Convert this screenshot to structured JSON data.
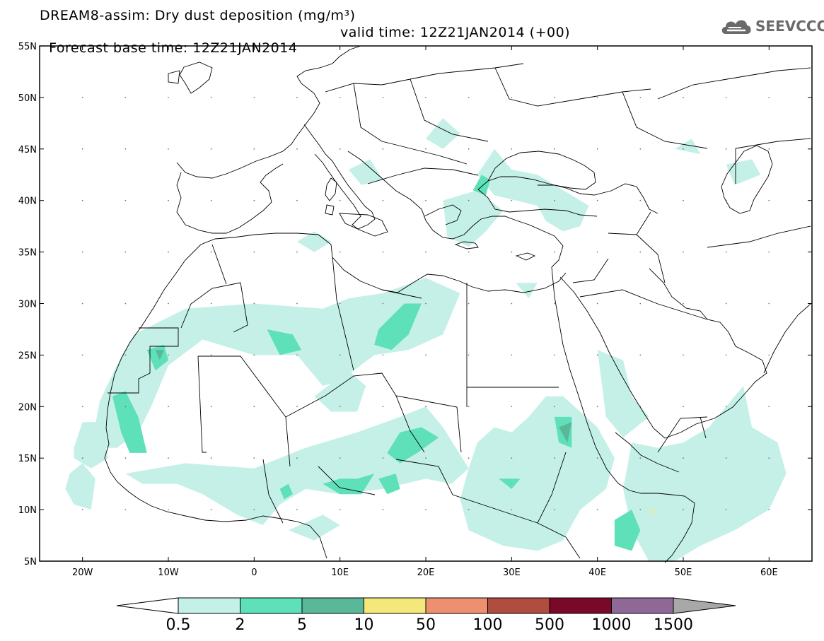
{
  "title": {
    "line1": "DREAM8-assim: Dry dust deposition (mg/m³)",
    "line2_base": "Forecast base time: 12Z21JAN2014",
    "line2_valid": "valid time: 12Z21JAN2014 (+00)"
  },
  "logo": {
    "text": "SEEVCCC",
    "icon": "cloud-icon",
    "color": "#6a6a6a"
  },
  "map": {
    "lon_range": [
      -25,
      65
    ],
    "lat_range": [
      5,
      55
    ],
    "lon_ticks": [
      {
        "value": -20,
        "label": "20W"
      },
      {
        "value": -10,
        "label": "10W"
      },
      {
        "value": 0,
        "label": "0"
      },
      {
        "value": 10,
        "label": "10E"
      },
      {
        "value": 20,
        "label": "20E"
      },
      {
        "value": 30,
        "label": "30E"
      },
      {
        "value": 40,
        "label": "40E"
      },
      {
        "value": 50,
        "label": "50E"
      },
      {
        "value": 60,
        "label": "60E"
      }
    ],
    "lat_ticks": [
      {
        "value": 55,
        "label": "55N"
      },
      {
        "value": 50,
        "label": "50N"
      },
      {
        "value": 45,
        "label": "45N"
      },
      {
        "value": 40,
        "label": "40N"
      },
      {
        "value": 35,
        "label": "35N"
      },
      {
        "value": 30,
        "label": "30N"
      },
      {
        "value": 25,
        "label": "25N"
      },
      {
        "value": 20,
        "label": "20N"
      },
      {
        "value": 15,
        "label": "15N"
      },
      {
        "value": 10,
        "label": "10N"
      },
      {
        "value": 5,
        "label": "5N"
      }
    ]
  },
  "legend": {
    "bins": [
      {
        "color": "#c4f0e8"
      },
      {
        "color": "#5ee0b8"
      },
      {
        "color": "#5ab898"
      },
      {
        "color": "#f5e87a"
      },
      {
        "color": "#ee9070"
      },
      {
        "color": "#b04c40"
      },
      {
        "color": "#7a0828"
      },
      {
        "color": "#906898"
      }
    ],
    "under_color": "#ffffff",
    "over_color": "#a8a8a8",
    "labels": [
      "0.5",
      "2",
      "5",
      "10",
      "50",
      "100",
      "500",
      "1000",
      "1500"
    ]
  },
  "field": {
    "light": [
      [
        [
          -19,
          16
        ],
        [
          -18,
          20.5
        ],
        [
          -16,
          24
        ],
        [
          -14,
          27
        ],
        [
          -8,
          29.5
        ],
        [
          0,
          30
        ],
        [
          8,
          29.5
        ],
        [
          11,
          30.5
        ],
        [
          15,
          31
        ],
        [
          20,
          32.5
        ],
        [
          24,
          31
        ],
        [
          22,
          27
        ],
        [
          18,
          25.5
        ],
        [
          14,
          25
        ],
        [
          10,
          22.5
        ],
        [
          8,
          22
        ],
        [
          5,
          25
        ],
        [
          0,
          25
        ],
        [
          -6,
          26.5
        ],
        [
          -10,
          24
        ],
        [
          -12,
          20
        ],
        [
          -13.5,
          17.5
        ],
        [
          -16,
          16
        ]
      ],
      [
        [
          -21,
          16
        ],
        [
          -20,
          18.5
        ],
        [
          -18,
          18.5
        ],
        [
          -17,
          15
        ],
        [
          -19,
          14
        ],
        [
          -21,
          15
        ]
      ],
      [
        [
          -21.5,
          13.5
        ],
        [
          -20,
          14.5
        ],
        [
          -18.5,
          13
        ],
        [
          -19,
          10
        ],
        [
          -21,
          10.5
        ],
        [
          -22,
          12
        ]
      ],
      [
        [
          -15,
          13.5
        ],
        [
          -8,
          14.5
        ],
        [
          0,
          14
        ],
        [
          3,
          15
        ],
        [
          6,
          16
        ],
        [
          12,
          17.5
        ],
        [
          17,
          19
        ],
        [
          20,
          20
        ],
        [
          22,
          18
        ],
        [
          25,
          14
        ],
        [
          23,
          12.5
        ],
        [
          20,
          13
        ],
        [
          15,
          12
        ],
        [
          10,
          11.5
        ],
        [
          6,
          12
        ],
        [
          3,
          10.5
        ],
        [
          1,
          8.5
        ],
        [
          -2,
          9.5
        ],
        [
          -6,
          11.5
        ],
        [
          -9,
          12.5
        ],
        [
          -13,
          12.5
        ]
      ],
      [
        [
          7,
          21
        ],
        [
          11,
          23.5
        ],
        [
          13,
          22
        ],
        [
          12,
          19.5
        ],
        [
          9,
          19.5
        ]
      ],
      [
        [
          4,
          8
        ],
        [
          8,
          9.5
        ],
        [
          10,
          8.5
        ],
        [
          7,
          7
        ]
      ],
      [
        [
          26,
          16.5
        ],
        [
          28,
          18
        ],
        [
          30,
          17.5
        ],
        [
          32,
          19
        ],
        [
          34,
          21
        ],
        [
          36,
          21
        ],
        [
          40,
          18
        ],
        [
          42,
          15
        ],
        [
          41,
          12
        ],
        [
          38,
          10
        ],
        [
          36,
          7
        ],
        [
          33,
          6
        ],
        [
          29,
          6.5
        ],
        [
          25,
          8
        ],
        [
          24,
          11
        ],
        [
          25,
          14
        ]
      ],
      [
        [
          40,
          25.5
        ],
        [
          43,
          24.5
        ],
        [
          44,
          21
        ],
        [
          46,
          19
        ],
        [
          43,
          17
        ],
        [
          41,
          19
        ]
      ],
      [
        [
          44,
          16.5
        ],
        [
          47,
          16
        ],
        [
          50,
          16.5
        ],
        [
          53,
          18
        ],
        [
          55,
          20
        ],
        [
          57,
          22
        ],
        [
          58,
          18
        ],
        [
          61,
          16.5
        ],
        [
          62,
          13.5
        ],
        [
          60,
          10
        ],
        [
          56,
          8
        ],
        [
          52,
          6.5
        ],
        [
          49,
          5
        ],
        [
          46,
          5
        ],
        [
          44,
          8
        ],
        [
          43,
          12
        ]
      ],
      [
        [
          34,
          38
        ],
        [
          33,
          39.5
        ],
        [
          28,
          40.5
        ],
        [
          26,
          42.5
        ],
        [
          28,
          45
        ],
        [
          30,
          43
        ],
        [
          33,
          42.5
        ],
        [
          36,
          41
        ],
        [
          39,
          39.5
        ],
        [
          38,
          37.5
        ],
        [
          36,
          37
        ]
      ],
      [
        [
          22,
          40
        ],
        [
          22.5,
          36.5
        ],
        [
          25,
          35.5
        ],
        [
          27,
          37
        ],
        [
          29,
          39
        ],
        [
          26,
          41
        ]
      ],
      [
        [
          20,
          46
        ],
        [
          22,
          48
        ],
        [
          24,
          46.5
        ],
        [
          22,
          45
        ]
      ],
      [
        [
          11,
          43
        ],
        [
          12.5,
          41.5
        ],
        [
          15,
          42
        ],
        [
          13.5,
          44
        ]
      ],
      [
        [
          49,
          45
        ],
        [
          51,
          46
        ],
        [
          52,
          44.5
        ]
      ],
      [
        [
          55,
          43.5
        ],
        [
          58,
          44
        ],
        [
          59,
          42.5
        ],
        [
          56,
          41.5
        ]
      ],
      [
        [
          5,
          36
        ],
        [
          7,
          37
        ],
        [
          9,
          36
        ],
        [
          7,
          35
        ]
      ],
      [
        [
          30.5,
          32
        ],
        [
          33,
          32
        ],
        [
          32,
          30.5
        ]
      ]
    ],
    "medium": [
      [
        [
          -12.5,
          25.5
        ],
        [
          -10.5,
          26
        ],
        [
          -10,
          24.5
        ],
        [
          -11.5,
          23.5
        ]
      ],
      [
        [
          -16.5,
          21
        ],
        [
          -15,
          21.5
        ],
        [
          -13.5,
          19
        ],
        [
          -12.5,
          15.5
        ],
        [
          -14.5,
          15.5
        ],
        [
          -15.5,
          17.5
        ]
      ],
      [
        [
          1.5,
          27.5
        ],
        [
          4.5,
          27
        ],
        [
          5.5,
          25.5
        ],
        [
          3,
          25
        ]
      ],
      [
        [
          14.5,
          27.5
        ],
        [
          17.5,
          30
        ],
        [
          19.5,
          30
        ],
        [
          18,
          27
        ],
        [
          16,
          25.5
        ],
        [
          14,
          26
        ]
      ],
      [
        [
          15.5,
          15.5
        ],
        [
          17,
          17.5
        ],
        [
          19.5,
          18
        ],
        [
          21.5,
          17
        ],
        [
          19,
          15.5
        ],
        [
          17,
          14.5
        ]
      ],
      [
        [
          8,
          12.5
        ],
        [
          10,
          13
        ],
        [
          12,
          13
        ],
        [
          14,
          13.5
        ],
        [
          12.5,
          11.5
        ],
        [
          10,
          11.5
        ]
      ],
      [
        [
          14.5,
          13
        ],
        [
          16.5,
          13.5
        ],
        [
          17,
          12
        ],
        [
          15.5,
          11.5
        ]
      ],
      [
        [
          3,
          12
        ],
        [
          4,
          12.5
        ],
        [
          4.5,
          11.5
        ],
        [
          3.5,
          11
        ]
      ],
      [
        [
          28.5,
          13
        ],
        [
          31,
          13
        ],
        [
          30,
          12
        ]
      ],
      [
        [
          35,
          19
        ],
        [
          37,
          19
        ],
        [
          37,
          16
        ],
        [
          35.5,
          16.5
        ]
      ],
      [
        [
          42,
          9
        ],
        [
          44,
          10
        ],
        [
          45,
          8
        ],
        [
          44,
          6
        ],
        [
          42,
          6.5
        ]
      ],
      [
        [
          25.5,
          41
        ],
        [
          26.5,
          42.5
        ],
        [
          27.5,
          42
        ],
        [
          27,
          40.5
        ]
      ]
    ],
    "dark": [
      [
        [
          -11.5,
          25.5
        ],
        [
          -10.5,
          25.5
        ],
        [
          -11,
          24.5
        ]
      ],
      [
        [
          35.5,
          18
        ],
        [
          37,
          18.5
        ],
        [
          36.5,
          16.5
        ]
      ]
    ],
    "yellow": [
      [
        [
          46.2,
          9.8
        ],
        [
          46.6,
          10.2
        ],
        [
          46.5,
          9.5
        ]
      ]
    ]
  }
}
